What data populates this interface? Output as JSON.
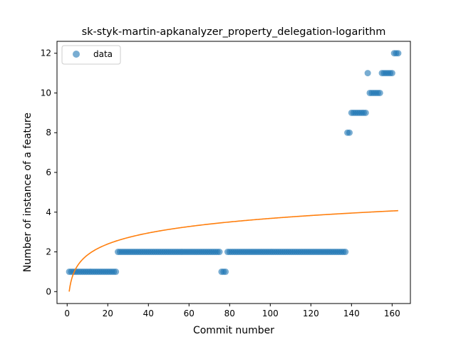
{
  "chart_data": {
    "type": "scatter",
    "title": "sk-styk-martin-apkanalyzer_property_delegation-logarithm",
    "xlabel": "Commit number",
    "ylabel": "Number of instance of a feature",
    "xlim": [
      -5,
      169
    ],
    "ylim": [
      -0.6,
      12.6
    ],
    "xticks": [
      0,
      20,
      40,
      60,
      80,
      100,
      120,
      140,
      160
    ],
    "yticks": [
      0,
      2,
      4,
      6,
      8,
      10,
      12
    ],
    "grid": false,
    "legend_position": "top-left",
    "colors": {
      "points": "#1f77b4",
      "fit": "#ff7f0e"
    },
    "series": [
      {
        "name": "data",
        "kind": "scatter",
        "runs": [
          {
            "from": 1,
            "to": 24,
            "y": 1
          },
          {
            "from": 25,
            "to": 75,
            "y": 2
          },
          {
            "from": 76,
            "to": 78,
            "y": 1
          },
          {
            "from": 79,
            "to": 137,
            "y": 2
          },
          {
            "from": 138,
            "to": 139,
            "y": 8
          },
          {
            "from": 140,
            "to": 147,
            "y": 9
          },
          {
            "from": 148,
            "to": 148,
            "y": 11
          },
          {
            "from": 149,
            "to": 154,
            "y": 10
          },
          {
            "from": 155,
            "to": 160,
            "y": 11
          },
          {
            "from": 161,
            "to": 163,
            "y": 12
          }
        ]
      },
      {
        "name": "",
        "kind": "line",
        "fit": "logarithmic",
        "a": 0.8,
        "b": 0,
        "x_start": 1,
        "x_end": 163
      }
    ]
  }
}
